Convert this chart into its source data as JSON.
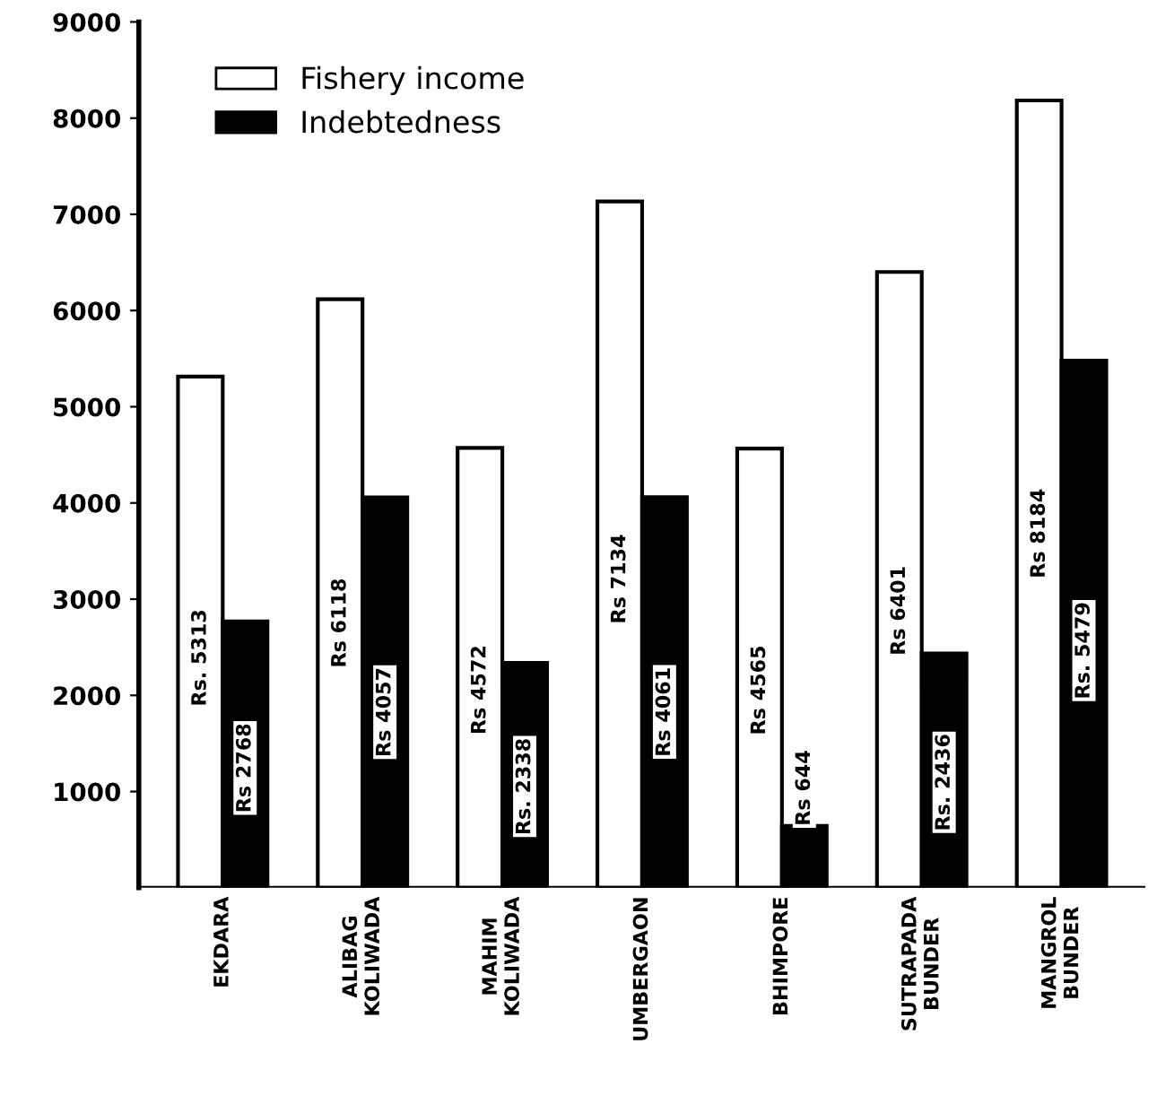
{
  "chart_data": {
    "type": "bar",
    "categories": [
      "EKDARA",
      "ALIBAG\nKOLIWADA",
      "MAHIM\nKOLIWADA",
      "UMBERGAON",
      "BHIMPORE",
      "SUTRAPADA\nBUNDER",
      "MANGROL\nBUNDER"
    ],
    "series": [
      {
        "name": "Fishery income",
        "color": "#ffffff",
        "values": [
          5313,
          6118,
          4572,
          7134,
          4565,
          6401,
          8184
        ],
        "value_labels": [
          "Rs. 5313",
          "Rs 6118",
          "Rs 4572",
          "Rs 7134",
          "Rs 4565",
          "Rs 6401",
          "Rs 8184"
        ]
      },
      {
        "name": "Indebtedness",
        "color": "#000000",
        "values": [
          2768,
          4057,
          2338,
          4061,
          644,
          2436,
          5479
        ],
        "value_labels": [
          "Rs 2768",
          "Rs 4057",
          "Rs. 2338",
          "Rs 4061",
          "Rs 644",
          "Rs. 2436",
          "Rs. 5479"
        ]
      }
    ],
    "ylim": [
      0,
      9000
    ],
    "yticks": [
      1000,
      2000,
      3000,
      4000,
      5000,
      6000,
      7000,
      8000,
      9000
    ],
    "legend": "top left",
    "grid": false
  }
}
